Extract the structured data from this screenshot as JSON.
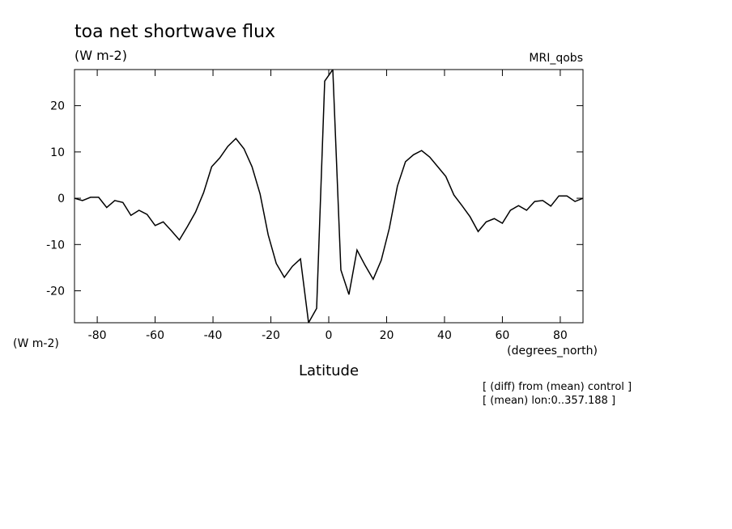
{
  "chart_data": {
    "type": "line",
    "title": "toa net shortwave flux",
    "units": "(W m-2)",
    "dataset": "MRI_qobs",
    "ylabel": "(W m-2)",
    "xunits": "(degrees_north)",
    "xlabel": "Latitude",
    "notes": [
      "[ (diff) from (mean) control ]",
      "[ (mean) lon:0..357.188 ]"
    ],
    "x": [
      -87.89,
      -85.1,
      -82.31,
      -79.52,
      -76.73,
      -73.94,
      -71.15,
      -68.36,
      -65.57,
      -62.78,
      -59.99,
      -57.2,
      -54.41,
      -51.62,
      -48.83,
      -46.04,
      -43.25,
      -40.46,
      -37.67,
      -34.88,
      -32.09,
      -29.3,
      -26.51,
      -23.72,
      -20.93,
      -18.14,
      -15.35,
      -12.56,
      -9.77,
      -6.98,
      -4.19,
      -1.4,
      1.4,
      4.19,
      6.98,
      9.77,
      12.56,
      15.35,
      18.14,
      20.93,
      23.72,
      26.51,
      29.3,
      32.09,
      34.88,
      37.67,
      40.46,
      43.25,
      46.04,
      48.83,
      51.62,
      54.41,
      57.2,
      59.99,
      62.78,
      65.57,
      68.36,
      71.15,
      73.94,
      76.73,
      79.52,
      82.31,
      85.1,
      87.89
    ],
    "series": [
      {
        "color": "#000000",
        "values": [
          0,
          -0.5,
          0.2,
          0.2,
          -2,
          -0.5,
          -0.9,
          -3.7,
          -2.6,
          -3.5,
          -5.9,
          -5.1,
          -7,
          -9,
          -6.1,
          -3,
          1.2,
          6.8,
          8.7,
          11.2,
          12.9,
          10.7,
          6.8,
          0.9,
          -7.9,
          -14.1,
          -17.1,
          -14.7,
          -13.1,
          -26.9,
          -23.8,
          25.3,
          27.8,
          -15.5,
          -20.8,
          -11.2,
          -14.5,
          -17.5,
          -13.4,
          -6.5,
          2.6,
          7.9,
          9.4,
          10.3,
          8.9,
          6.8,
          4.7,
          0.7,
          -1.6,
          -4,
          -7.2,
          -5.1,
          -4.4,
          -5.4,
          -2.6,
          -1.6,
          -2.6,
          -0.7,
          -0.5,
          -1.7,
          0.5,
          0.5,
          -0.7,
          0
        ]
      }
    ],
    "xlim": [
      -87.86,
      87.86
    ],
    "ylim": [
      -26.9,
      27.8
    ],
    "xticks": [
      -80,
      -60,
      -40,
      -20,
      0,
      20,
      40,
      60,
      80
    ],
    "yticks": [
      -20,
      -10,
      0,
      10,
      20
    ],
    "grid": false
  }
}
